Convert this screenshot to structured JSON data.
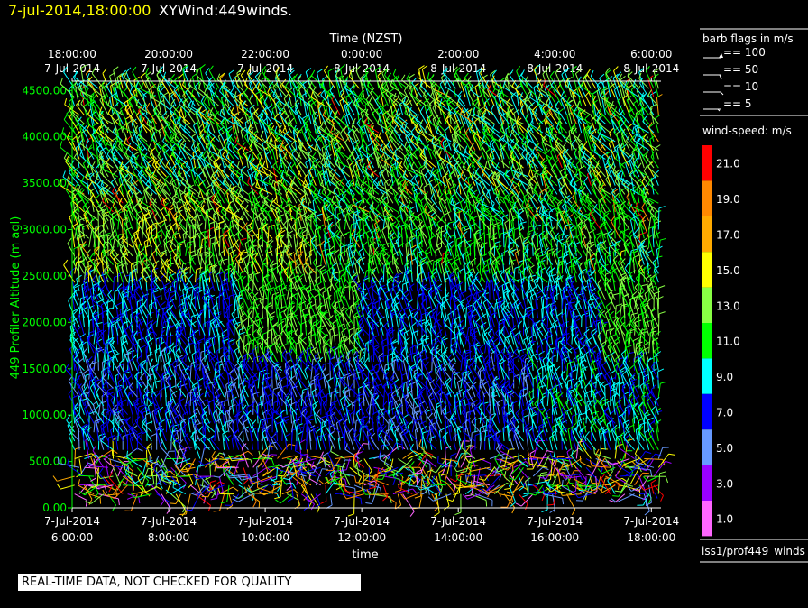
{
  "header": {
    "time": "7-jul-2014,18:00:00",
    "title": "XYWind:449winds."
  },
  "chart_data": {
    "type": "wind-barb-time-height",
    "top_axis": {
      "label": "Time (NZST)",
      "ticks": [
        {
          "t": 6,
          "line1": "18:00:00",
          "line2": "7-Jul-2014"
        },
        {
          "t": 8,
          "line1": "20:00:00",
          "line2": "7-Jul-2014"
        },
        {
          "t": 10,
          "line1": "22:00:00",
          "line2": "7-Jul-2014"
        },
        {
          "t": 12,
          "line1": "0:00:00",
          "line2": "8-Jul-2014"
        },
        {
          "t": 14,
          "line1": "2:00:00",
          "line2": "8-Jul-2014"
        },
        {
          "t": 16,
          "line1": "4:00:00",
          "line2": "8-Jul-2014"
        },
        {
          "t": 18,
          "line1": "6:00:00",
          "line2": "8-Jul-2014"
        }
      ]
    },
    "bottom_axis": {
      "label": "time",
      "ticks": [
        {
          "t": 6,
          "line1": "7-Jul-2014",
          "line2": "6:00:00"
        },
        {
          "t": 8,
          "line1": "7-Jul-2014",
          "line2": "8:00:00"
        },
        {
          "t": 10,
          "line1": "7-Jul-2014",
          "line2": "10:00:00"
        },
        {
          "t": 12,
          "line1": "7-Jul-2014",
          "line2": "12:00:00"
        },
        {
          "t": 14,
          "line1": "7-Jul-2014",
          "line2": "14:00:00"
        },
        {
          "t": 16,
          "line1": "7-Jul-2014",
          "line2": "16:00:00"
        },
        {
          "t": 18,
          "line1": "7-Jul-2014",
          "line2": "18:00:00"
        }
      ]
    },
    "y_axis": {
      "label": "449 Profiler Altitude (m agl)",
      "ticks": [
        "0.00",
        "500.00",
        "1000.00",
        "1500.00",
        "2000.00",
        "2500.00",
        "3000.00",
        "3500.00",
        "4000.00",
        "4500.00"
      ],
      "ylim": [
        0,
        4600
      ]
    },
    "xlim": [
      6,
      18.2
    ],
    "barb_legend": {
      "title": "barb flags in m/s",
      "items": [
        {
          "label": "== 100",
          "kind": "100"
        },
        {
          "label": "== 50",
          "kind": "50"
        },
        {
          "label": "== 10",
          "kind": "10"
        },
        {
          "label": "== 5",
          "kind": "5"
        }
      ]
    },
    "colorbar": {
      "title": "wind-speed: m/s",
      "levels": [
        {
          "label": "21.0",
          "color": "#ff0000"
        },
        {
          "label": "19.0",
          "color": "#ff8800"
        },
        {
          "label": "17.0",
          "color": "#ffaa00"
        },
        {
          "label": "15.0",
          "color": "#ffff00"
        },
        {
          "label": "13.0",
          "color": "#88ff44"
        },
        {
          "label": "11.0",
          "color": "#00ff00"
        },
        {
          "label": "9.0",
          "color": "#00ffff"
        },
        {
          "label": "7.0",
          "color": "#0000ff"
        },
        {
          "label": "5.0",
          "color": "#6699ff"
        },
        {
          "label": "3.0",
          "color": "#9900ff"
        },
        {
          "label": "1.0",
          "color": "#ff66ff"
        }
      ]
    },
    "source_label": "iss1/prof449_winds"
  },
  "note": "REAL-TIME DATA, NOT CHECKED FOR QUALITY"
}
